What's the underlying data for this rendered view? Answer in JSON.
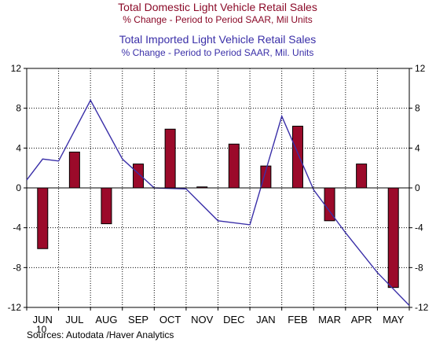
{
  "chart_data": {
    "type": "bar",
    "titles": [
      {
        "text": "Total Domestic Light Vehicle Retail Sales",
        "color": "#8b0a28"
      },
      {
        "text": "% Change - Period to Period     SAAR, Mil Units",
        "color": "#8b0a28"
      },
      {
        "text": "Total Imported Light Vehicle Retail Sales",
        "color": "#3a2fa8"
      },
      {
        "text": "% Change - Period to Period     SAAR, Mil. Units",
        "color": "#3a2fa8"
      }
    ],
    "categories": [
      "JUN",
      "JUL",
      "AUG",
      "SEP",
      "OCT",
      "NOV",
      "DEC",
      "JAN",
      "FEB",
      "MAR",
      "APR",
      "MAY"
    ],
    "year_label": "10",
    "ylim": [
      -12,
      12
    ],
    "yticks": [
      "12",
      "8",
      "4",
      "0",
      "-4",
      "-8",
      "-12"
    ],
    "grid": true,
    "series": [
      {
        "kind": "bar",
        "color": "#9b0a2a",
        "values": [
          -6.1,
          3.6,
          -3.6,
          2.4,
          5.9,
          0.1,
          4.4,
          2.2,
          6.2,
          -3.3,
          2.4,
          -10.0
        ]
      },
      {
        "kind": "line",
        "color": "#3a2fa8",
        "x": [
          -0.6,
          0,
          0.5,
          1.5,
          2.5,
          3.5,
          4.5,
          5.5,
          6.5,
          7.5,
          8.5,
          9.5,
          10.5,
          11.5
        ],
        "values": [
          0.8,
          2.9,
          2.7,
          8.8,
          2.9,
          0.0,
          -0.1,
          -3.3,
          -3.7,
          7.2,
          -0.2,
          -4.5,
          -8.5,
          -11.8
        ]
      }
    ],
    "source": "Sources:  Autodata /Haver Analytics"
  }
}
